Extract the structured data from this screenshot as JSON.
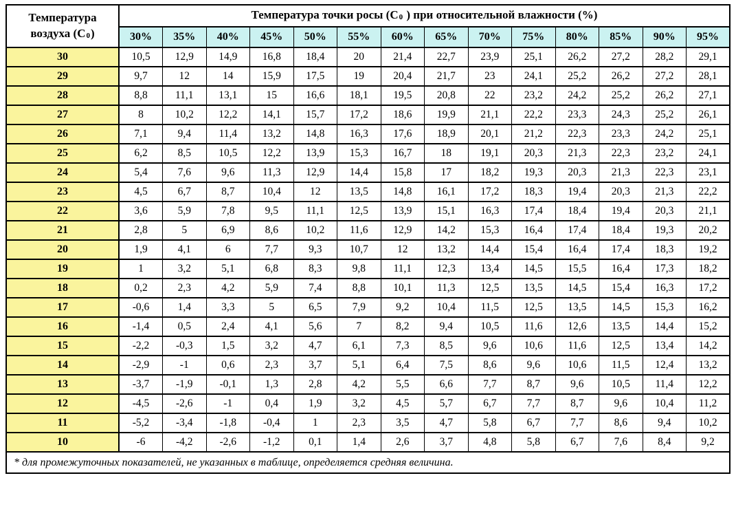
{
  "header": {
    "corner_line1": "Температура",
    "corner_line2_pre": "воздуха (C",
    "corner_line2_post": ")",
    "title_pre": "Температура точки росы (C",
    "title_post": " ) при относительной влажности (%)",
    "deg_sup": "0",
    "deg_sub": "ˇ"
  },
  "footnote": "* для промежуточных показателей, не указанных в таблице, определяется средняя величина.",
  "colors": {
    "border": "#000000",
    "humidity_header_bg": "#cbf2f1",
    "air_temp_col_bg": "#faf49d",
    "cell_bg": "#ffffff"
  },
  "chart_data": {
    "type": "table",
    "title": "Температура точки росы (C0) при относительной влажности (%)",
    "row_header_title": "Температура воздуха (C0)",
    "columns": [
      "30%",
      "35%",
      "40%",
      "45%",
      "50%",
      "55%",
      "60%",
      "65%",
      "70%",
      "75%",
      "80%",
      "85%",
      "90%",
      "95%"
    ],
    "rows": [
      {
        "air_temp": "30",
        "dew_points": [
          "10,5",
          "12,9",
          "14,9",
          "16,8",
          "18,4",
          "20",
          "21,4",
          "22,7",
          "23,9",
          "25,1",
          "26,2",
          "27,2",
          "28,2",
          "29,1"
        ]
      },
      {
        "air_temp": "29",
        "dew_points": [
          "9,7",
          "12",
          "14",
          "15,9",
          "17,5",
          "19",
          "20,4",
          "21,7",
          "23",
          "24,1",
          "25,2",
          "26,2",
          "27,2",
          "28,1"
        ]
      },
      {
        "air_temp": "28",
        "dew_points": [
          "8,8",
          "11,1",
          "13,1",
          "15",
          "16,6",
          "18,1",
          "19,5",
          "20,8",
          "22",
          "23,2",
          "24,2",
          "25,2",
          "26,2",
          "27,1"
        ]
      },
      {
        "air_temp": "27",
        "dew_points": [
          "8",
          "10,2",
          "12,2",
          "14,1",
          "15,7",
          "17,2",
          "18,6",
          "19,9",
          "21,1",
          "22,2",
          "23,3",
          "24,3",
          "25,2",
          "26,1"
        ]
      },
      {
        "air_temp": "26",
        "dew_points": [
          "7,1",
          "9,4",
          "11,4",
          "13,2",
          "14,8",
          "16,3",
          "17,6",
          "18,9",
          "20,1",
          "21,2",
          "22,3",
          "23,3",
          "24,2",
          "25,1"
        ]
      },
      {
        "air_temp": "25",
        "dew_points": [
          "6,2",
          "8,5",
          "10,5",
          "12,2",
          "13,9",
          "15,3",
          "16,7",
          "18",
          "19,1",
          "20,3",
          "21,3",
          "22,3",
          "23,2",
          "24,1"
        ]
      },
      {
        "air_temp": "24",
        "dew_points": [
          "5,4",
          "7,6",
          "9,6",
          "11,3",
          "12,9",
          "14,4",
          "15,8",
          "17",
          "18,2",
          "19,3",
          "20,3",
          "21,3",
          "22,3",
          "23,1"
        ]
      },
      {
        "air_temp": "23",
        "dew_points": [
          "4,5",
          "6,7",
          "8,7",
          "10,4",
          "12",
          "13,5",
          "14,8",
          "16,1",
          "17,2",
          "18,3",
          "19,4",
          "20,3",
          "21,3",
          "22,2"
        ]
      },
      {
        "air_temp": "22",
        "dew_points": [
          "3,6",
          "5,9",
          "7,8",
          "9,5",
          "11,1",
          "12,5",
          "13,9",
          "15,1",
          "16,3",
          "17,4",
          "18,4",
          "19,4",
          "20,3",
          "21,1"
        ]
      },
      {
        "air_temp": "21",
        "dew_points": [
          "2,8",
          "5",
          "6,9",
          "8,6",
          "10,2",
          "11,6",
          "12,9",
          "14,2",
          "15,3",
          "16,4",
          "17,4",
          "18,4",
          "19,3",
          "20,2"
        ]
      },
      {
        "air_temp": "20",
        "dew_points": [
          "1,9",
          "4,1",
          "6",
          "7,7",
          "9,3",
          "10,7",
          "12",
          "13,2",
          "14,4",
          "15,4",
          "16,4",
          "17,4",
          "18,3",
          "19,2"
        ]
      },
      {
        "air_temp": "19",
        "dew_points": [
          "1",
          "3,2",
          "5,1",
          "6,8",
          "8,3",
          "9,8",
          "11,1",
          "12,3",
          "13,4",
          "14,5",
          "15,5",
          "16,4",
          "17,3",
          "18,2"
        ]
      },
      {
        "air_temp": "18",
        "dew_points": [
          "0,2",
          "2,3",
          "4,2",
          "5,9",
          "7,4",
          "8,8",
          "10,1",
          "11,3",
          "12,5",
          "13,5",
          "14,5",
          "15,4",
          "16,3",
          "17,2"
        ]
      },
      {
        "air_temp": "17",
        "dew_points": [
          "-0,6",
          "1,4",
          "3,3",
          "5",
          "6,5",
          "7,9",
          "9,2",
          "10,4",
          "11,5",
          "12,5",
          "13,5",
          "14,5",
          "15,3",
          "16,2"
        ]
      },
      {
        "air_temp": "16",
        "dew_points": [
          "-1,4",
          "0,5",
          "2,4",
          "4,1",
          "5,6",
          "7",
          "8,2",
          "9,4",
          "10,5",
          "11,6",
          "12,6",
          "13,5",
          "14,4",
          "15,2"
        ]
      },
      {
        "air_temp": "15",
        "dew_points": [
          "-2,2",
          "-0,3",
          "1,5",
          "3,2",
          "4,7",
          "6,1",
          "7,3",
          "8,5",
          "9,6",
          "10,6",
          "11,6",
          "12,5",
          "13,4",
          "14,2"
        ]
      },
      {
        "air_temp": "14",
        "dew_points": [
          "-2,9",
          "-1",
          "0,6",
          "2,3",
          "3,7",
          "5,1",
          "6,4",
          "7,5",
          "8,6",
          "9,6",
          "10,6",
          "11,5",
          "12,4",
          "13,2"
        ]
      },
      {
        "air_temp": "13",
        "dew_points": [
          "-3,7",
          "-1,9",
          "-0,1",
          "1,3",
          "2,8",
          "4,2",
          "5,5",
          "6,6",
          "7,7",
          "8,7",
          "9,6",
          "10,5",
          "11,4",
          "12,2"
        ]
      },
      {
        "air_temp": "12",
        "dew_points": [
          "-4,5",
          "-2,6",
          "-1",
          "0,4",
          "1,9",
          "3,2",
          "4,5",
          "5,7",
          "6,7",
          "7,7",
          "8,7",
          "9,6",
          "10,4",
          "11,2"
        ]
      },
      {
        "air_temp": "11",
        "dew_points": [
          "-5,2",
          "-3,4",
          "-1,8",
          "-0,4",
          "1",
          "2,3",
          "3,5",
          "4,7",
          "5,8",
          "6,7",
          "7,7",
          "8,6",
          "9,4",
          "10,2"
        ]
      },
      {
        "air_temp": "10",
        "dew_points": [
          "-6",
          "-4,2",
          "-2,6",
          "-1,2",
          "0,1",
          "1,4",
          "2,6",
          "3,7",
          "4,8",
          "5,8",
          "6,7",
          "7,6",
          "8,4",
          "9,2"
        ]
      }
    ],
    "footnote": "* для промежуточных показателей, не указанных в таблице, определяется средняя величина."
  }
}
